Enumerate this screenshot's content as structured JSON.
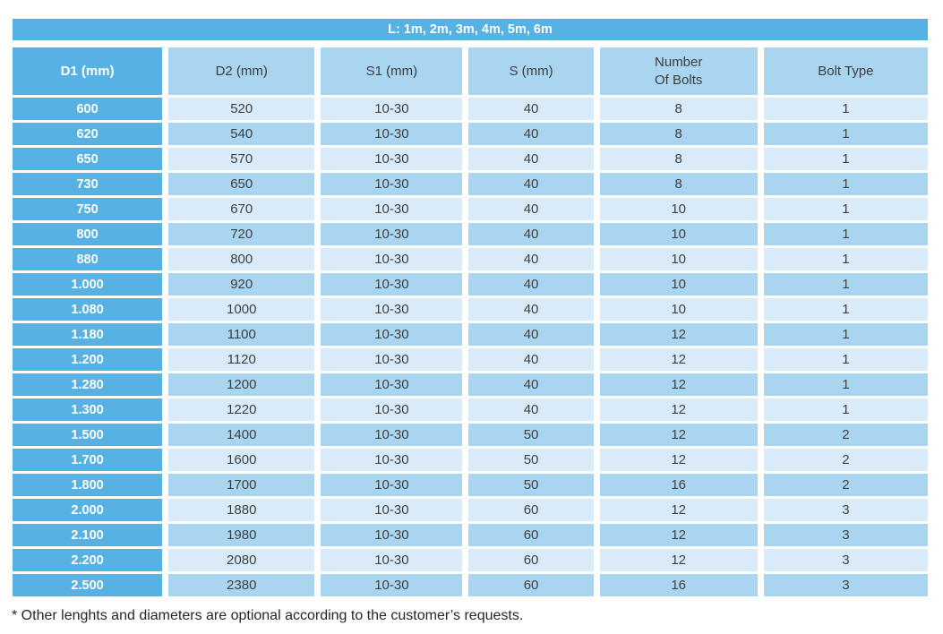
{
  "colors": {
    "mid_blue": "#57B2E3",
    "light_blue": "#A9D5F0",
    "lighter_blue": "#D9EBF8",
    "header_text": "#3D3D3D",
    "cell_text": "#404040",
    "title_text": "#FFFFFF"
  },
  "title_bar": {
    "label": "L: 1m, 2m, 3m, 4m, 5m, 6m"
  },
  "table": {
    "columns": [
      "D1 (mm)",
      "D2 (mm)",
      "S1 (mm)",
      "S (mm)",
      "Number\nOf Bolts",
      "Bolt Type"
    ],
    "rows": [
      [
        "600",
        "520",
        "10-30",
        "40",
        "8",
        "1"
      ],
      [
        "620",
        "540",
        "10-30",
        "40",
        "8",
        "1"
      ],
      [
        "650",
        "570",
        "10-30",
        "40",
        "8",
        "1"
      ],
      [
        "730",
        "650",
        "10-30",
        "40",
        "8",
        "1"
      ],
      [
        "750",
        "670",
        "10-30",
        "40",
        "10",
        "1"
      ],
      [
        "800",
        "720",
        "10-30",
        "40",
        "10",
        "1"
      ],
      [
        "880",
        "800",
        "10-30",
        "40",
        "10",
        "1"
      ],
      [
        "1.000",
        "920",
        "10-30",
        "40",
        "10",
        "1"
      ],
      [
        "1.080",
        "1000",
        "10-30",
        "40",
        "10",
        "1"
      ],
      [
        "1.180",
        "1100",
        "10-30",
        "40",
        "12",
        "1"
      ],
      [
        "1.200",
        "1120",
        "10-30",
        "40",
        "12",
        "1"
      ],
      [
        "1.280",
        "1200",
        "10-30",
        "40",
        "12",
        "1"
      ],
      [
        "1.300",
        "1220",
        "10-30",
        "40",
        "12",
        "1"
      ],
      [
        "1.500",
        "1400",
        "10-30",
        "50",
        "12",
        "2"
      ],
      [
        "1.700",
        "1600",
        "10-30",
        "50",
        "12",
        "2"
      ],
      [
        "1.800",
        "1700",
        "10-30",
        "50",
        "16",
        "2"
      ],
      [
        "2.000",
        "1880",
        "10-30",
        "60",
        "12",
        "3"
      ],
      [
        "2.100",
        "1980",
        "10-30",
        "60",
        "12",
        "3"
      ],
      [
        "2.200",
        "2080",
        "10-30",
        "60",
        "12",
        "3"
      ],
      [
        "2.500",
        "2380",
        "10-30",
        "60",
        "16",
        "3"
      ]
    ]
  },
  "footnote": "* Other lenghts and diameters are optional according to the customer’s requests."
}
